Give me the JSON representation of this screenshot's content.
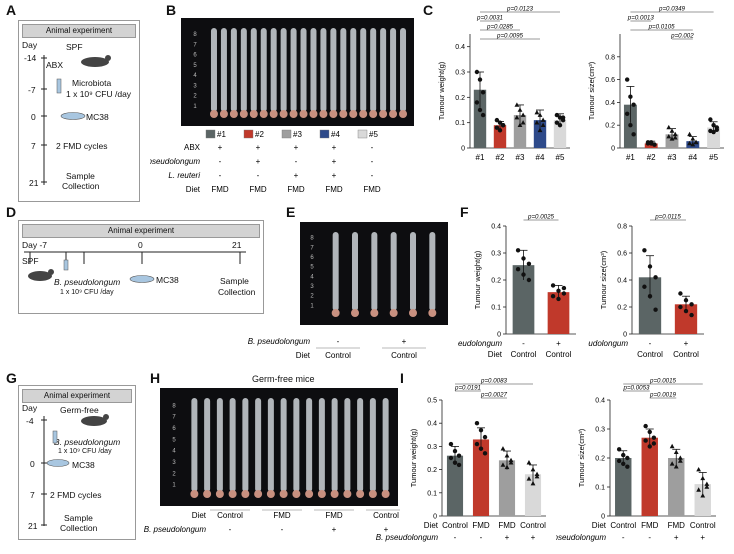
{
  "panels": {
    "A": "A",
    "B": "B",
    "C": "C",
    "D": "D",
    "E": "E",
    "F": "F",
    "G": "G",
    "H": "H",
    "I": "I"
  },
  "A": {
    "header": "Animal experiment",
    "day_label": "Day",
    "days": [
      "-14",
      "-7",
      "0",
      "7",
      "21"
    ],
    "steps": [
      "SPF",
      "ABX",
      "Microbiota",
      "1 x 10⁹ CFU /day",
      "MC38",
      "2 FMD cycles",
      "Sample",
      "Collection"
    ]
  },
  "B": {
    "groups": [
      "#1",
      "#2",
      "#3",
      "#4",
      "#5"
    ],
    "group_colors": [
      "#5b6565",
      "#c0392b",
      "#9e9e9e",
      "#2e4a8a",
      "#d9d9d9"
    ],
    "row_labels": [
      "ABX",
      "B. pseudolongum",
      "L. reuteri",
      "Diet"
    ],
    "abx": [
      "+",
      "+",
      "+",
      "+",
      "-"
    ],
    "bp": [
      "-",
      "+",
      "-",
      "+",
      "-"
    ],
    "lr": [
      "-",
      "-",
      "+",
      "+",
      "-"
    ],
    "diet": [
      "FMD",
      "FMD",
      "FMD",
      "FMD",
      "FMD"
    ]
  },
  "D": {
    "header": "Animal experiment",
    "days": [
      "Day -7",
      "0",
      "21"
    ],
    "spf": "SPF",
    "bp": "B. pseudolongum",
    "dose": "1 x 10⁹ CFU /day",
    "mc38": "MC38",
    "sample": "Sample",
    "collection": "Collection"
  },
  "E": {
    "row_labels": [
      "B. pseudolongum",
      "Diet"
    ],
    "bp": [
      "-",
      "+"
    ],
    "diet": [
      "Control",
      "Control"
    ]
  },
  "G": {
    "header": "Animal experiment",
    "day_label": "Day",
    "days": [
      "-4",
      "0",
      "7",
      "21"
    ],
    "steps": [
      "Germ-free",
      "B. pseudolongum",
      "1 x 10⁹ CFU /day",
      "MC38",
      "2 FMD cycles",
      "Sample",
      "Collection"
    ]
  },
  "H": {
    "title": "Germ-free mice",
    "row_labels": [
      "Diet",
      "B. pseudolongum"
    ],
    "diet": [
      "Control",
      "FMD",
      "FMD",
      "Control"
    ],
    "bp": [
      "-",
      "-",
      "+",
      "+"
    ]
  },
  "chart_data": [
    {
      "id": "C-weight",
      "type": "bar",
      "ylabel": "Tumour weight(g)",
      "ylim": [
        0,
        0.45
      ],
      "yticks": [
        0,
        0.1,
        0.2,
        0.3,
        0.4
      ],
      "categories": [
        "#1",
        "#2",
        "#3",
        "#4",
        "#5"
      ],
      "values": [
        0.23,
        0.09,
        0.13,
        0.11,
        0.11
      ],
      "errors": [
        0.07,
        0.015,
        0.04,
        0.04,
        0.025
      ],
      "colors": [
        "#5b6565",
        "#c0392b",
        "#9e9e9e",
        "#2e4a8a",
        "#d9d9d9"
      ],
      "points": [
        [
          0.3,
          0.27,
          0.22,
          0.18,
          0.15,
          0.13
        ],
        [
          0.11,
          0.1,
          0.09,
          0.08,
          0.07,
          0.09
        ],
        [
          0.17,
          0.15,
          0.13,
          0.12,
          0.09,
          0.1
        ],
        [
          0.14,
          0.13,
          0.11,
          0.1,
          0.07,
          0.09
        ],
        [
          0.13,
          0.12,
          0.11,
          0.1,
          0.09,
          0.12
        ]
      ],
      "comparisons": [
        {
          "from": 0,
          "to": 4,
          "text": "p=0.0123"
        },
        {
          "from": 0,
          "to": 1,
          "text": "p=0.0031"
        },
        {
          "from": 0,
          "to": 2,
          "text": "p=0.0285"
        },
        {
          "from": 0,
          "to": 3,
          "text": "p=0.0095"
        }
      ]
    },
    {
      "id": "C-size",
      "type": "bar",
      "ylabel": "Tumour size(cm³)",
      "ylim": [
        0,
        1.0
      ],
      "yticks": [
        0,
        0.2,
        0.4,
        0.6,
        0.8
      ],
      "categories": [
        "#1",
        "#2",
        "#3",
        "#4",
        "#5"
      ],
      "values": [
        0.38,
        0.04,
        0.12,
        0.06,
        0.18
      ],
      "errors": [
        0.16,
        0.02,
        0.05,
        0.04,
        0.05
      ],
      "colors": [
        "#5b6565",
        "#c0392b",
        "#9e9e9e",
        "#2e4a8a",
        "#d9d9d9"
      ],
      "points": [
        [
          0.6,
          0.45,
          0.38,
          0.3,
          0.2,
          0.12
        ],
        [
          0.05,
          0.04,
          0.03,
          0.04,
          0.05,
          0.03
        ],
        [
          0.18,
          0.15,
          0.12,
          0.1,
          0.08,
          0.09
        ],
        [
          0.12,
          0.08,
          0.05,
          0.04,
          0.03,
          0.05
        ],
        [
          0.25,
          0.2,
          0.18,
          0.15,
          0.14,
          0.16
        ]
      ],
      "comparisons": [
        {
          "from": 0,
          "to": 4,
          "text": "p=0.0349"
        },
        {
          "from": 0,
          "to": 1,
          "text": "p=0.0013"
        },
        {
          "from": 0,
          "to": 3,
          "text": "p=0.0105"
        },
        {
          "from": 2,
          "to": 3,
          "text": "p=0.002"
        }
      ]
    },
    {
      "id": "F-weight",
      "type": "bar",
      "ylabel": "Tumour weight(g)",
      "ylim": [
        0,
        0.4
      ],
      "yticks": [
        0,
        0.1,
        0.2,
        0.3,
        0.4
      ],
      "categories": [
        "Control",
        "Control"
      ],
      "values": [
        0.255,
        0.155
      ],
      "errors": [
        0.055,
        0.025
      ],
      "colors": [
        "#5b6565",
        "#c0392b"
      ],
      "points": [
        [
          0.31,
          0.28,
          0.26,
          0.24,
          0.22,
          0.2
        ],
        [
          0.18,
          0.16,
          0.15,
          0.14,
          0.13,
          0.17
        ]
      ],
      "comparisons": [
        {
          "from": 0,
          "to": 1,
          "text": "p=0.0025"
        }
      ],
      "row1_label": "B. pseudolongum",
      "row1": [
        "-",
        "+"
      ],
      "row2_label": "Diet"
    },
    {
      "id": "F-size",
      "type": "bar",
      "ylabel": "Tumour size(cm³)",
      "ylim": [
        0,
        0.8
      ],
      "yticks": [
        0,
        0.2,
        0.4,
        0.6,
        0.8
      ],
      "categories": [
        "Control",
        "Control"
      ],
      "values": [
        0.42,
        0.22
      ],
      "errors": [
        0.16,
        0.06
      ],
      "colors": [
        "#5b6565",
        "#c0392b"
      ],
      "points": [
        [
          0.62,
          0.5,
          0.42,
          0.35,
          0.28,
          0.18
        ],
        [
          0.3,
          0.25,
          0.22,
          0.2,
          0.17,
          0.14
        ]
      ],
      "comparisons": [
        {
          "from": 0,
          "to": 1,
          "text": "p=0.0115"
        }
      ],
      "row1_label": "B. pseudolongum",
      "row1": [
        "-",
        "+"
      ],
      "row2_label": ""
    },
    {
      "id": "I-weight",
      "type": "bar",
      "ylabel": "Tumour weight(g)",
      "ylim": [
        0,
        0.5
      ],
      "yticks": [
        0,
        0.1,
        0.2,
        0.3,
        0.4,
        0.5
      ],
      "categories": [
        "Control",
        "FMD",
        "FMD",
        "Control"
      ],
      "values": [
        0.26,
        0.33,
        0.24,
        0.18
      ],
      "errors": [
        0.04,
        0.05,
        0.04,
        0.04
      ],
      "colors": [
        "#5b6565",
        "#c0392b",
        "#9e9e9e",
        "#d9d9d9"
      ],
      "points": [
        [
          0.31,
          0.28,
          0.26,
          0.25,
          0.23,
          0.22
        ],
        [
          0.4,
          0.37,
          0.34,
          0.31,
          0.29,
          0.27
        ],
        [
          0.29,
          0.26,
          0.24,
          0.22,
          0.21,
          0.23
        ],
        [
          0.23,
          0.2,
          0.18,
          0.16,
          0.14,
          0.17
        ]
      ],
      "comparisons": [
        {
          "from": 0,
          "to": 3,
          "text": "p=0.0083"
        },
        {
          "from": 0,
          "to": 1,
          "text": "p=0.0191"
        },
        {
          "from": 1,
          "to": 2,
          "text": "p=0.0027"
        }
      ],
      "row1_label": "Diet",
      "row2_label": "B. pseudolongum",
      "row2": [
        "-",
        "-",
        "+",
        "+"
      ]
    },
    {
      "id": "I-size",
      "type": "bar",
      "ylabel": "Tumour size(cm³)",
      "ylim": [
        0,
        0.4
      ],
      "yticks": [
        0,
        0.1,
        0.2,
        0.3,
        0.4
      ],
      "categories": [
        "Control",
        "FMD",
        "FMD",
        "Control"
      ],
      "values": [
        0.2,
        0.27,
        0.2,
        0.11
      ],
      "errors": [
        0.025,
        0.03,
        0.03,
        0.04
      ],
      "colors": [
        "#5b6565",
        "#c0392b",
        "#9e9e9e",
        "#d9d9d9"
      ],
      "points": [
        [
          0.23,
          0.21,
          0.2,
          0.19,
          0.18,
          0.17
        ],
        [
          0.31,
          0.29,
          0.27,
          0.26,
          0.24,
          0.25
        ],
        [
          0.24,
          0.22,
          0.2,
          0.18,
          0.17,
          0.19
        ],
        [
          0.16,
          0.13,
          0.11,
          0.09,
          0.07,
          0.1
        ]
      ],
      "comparisons": [
        {
          "from": 0,
          "to": 3,
          "text": "p=0.0015"
        },
        {
          "from": 0,
          "to": 1,
          "text": "p=0.0053"
        },
        {
          "from": 1,
          "to": 2,
          "text": "p=0.0019"
        }
      ],
      "row1_label": "Diet",
      "row2_label": "B. pseudolongum",
      "row2": [
        "-",
        "-",
        "+",
        "+"
      ]
    }
  ]
}
